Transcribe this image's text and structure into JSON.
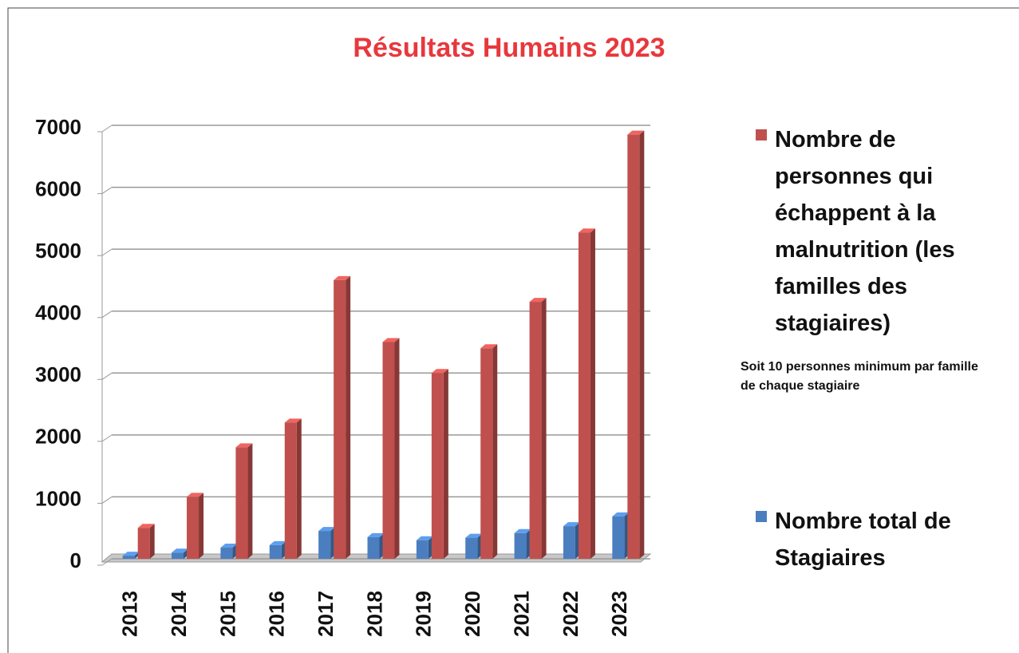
{
  "chart_data": {
    "type": "bar3d",
    "title": "Résultats Humains 2023",
    "annotation": "Soit 10 personnes minimum par famille de chaque stagiaire",
    "categories": [
      "2013",
      "2014",
      "2015",
      "2016",
      "2017",
      "2018",
      "2019",
      "2020",
      "2021",
      "2022",
      "2023"
    ],
    "series": [
      {
        "name": "Nombre total de Stagiaires",
        "color": "#4a7ebf",
        "values": [
          50,
          100,
          180,
          220,
          450,
          350,
          300,
          340,
          415,
          527,
          685
        ]
      },
      {
        "name": "Nombre de personnes qui échappent à la malnutrition (les familles des stagiaires)",
        "color": "#c0504d",
        "values": [
          500,
          1000,
          1800,
          2200,
          4500,
          3500,
          3000,
          3400,
          4150,
          5270,
          6850
        ]
      }
    ],
    "ylim": [
      0,
      7000
    ],
    "yticks": [
      0,
      1000,
      2000,
      3000,
      4000,
      5000,
      6000,
      7000
    ],
    "grid": true
  }
}
